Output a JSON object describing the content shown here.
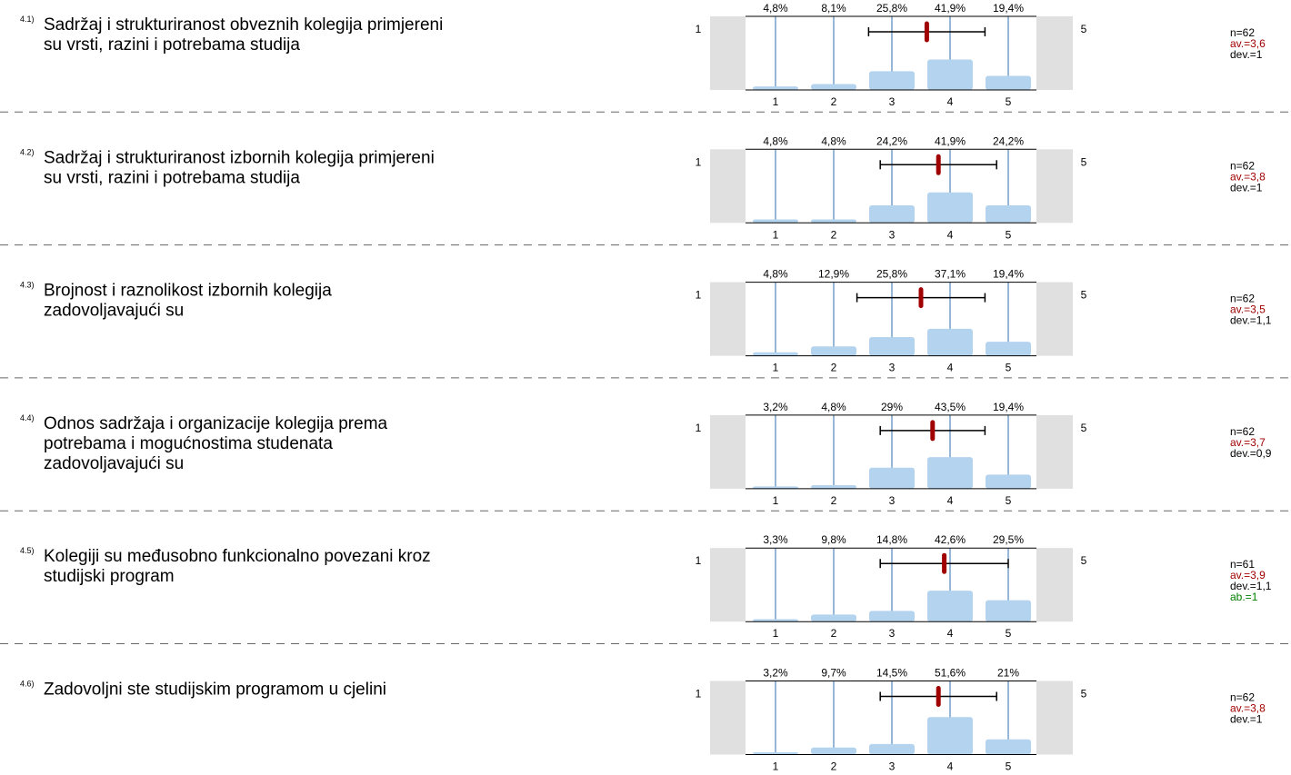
{
  "categories": [
    1,
    2,
    3,
    4,
    5
  ],
  "scale": [
    1,
    5
  ],
  "items": [
    {
      "number": "4.1)",
      "question": [
        "Sadržaj i strukturiranost obveznih kolegija primjereni",
        "su vrsti, razini i potrebama studija"
      ],
      "values": [
        4.8,
        8.1,
        25.8,
        41.9,
        19.4
      ],
      "value_labels": [
        "4,8%",
        "8,1%",
        "25,8%",
        "41,9%",
        "19,4%"
      ],
      "n": 62,
      "n_label": "n=62",
      "mean": 3.6,
      "mean_label": "av.=3,6",
      "dev": 1,
      "dev_label": "dev.=1"
    },
    {
      "number": "4.2)",
      "question": [
        "Sadržaj i strukturiranost izbornih kolegija primjereni",
        "su vrsti, razini i potrebama studija"
      ],
      "values": [
        4.8,
        4.8,
        24.2,
        41.9,
        24.2
      ],
      "value_labels": [
        "4,8%",
        "4,8%",
        "24,2%",
        "41,9%",
        "24,2%"
      ],
      "n": 62,
      "n_label": "n=62",
      "mean": 3.8,
      "mean_label": "av.=3,8",
      "dev": 1,
      "dev_label": "dev.=1"
    },
    {
      "number": "4.3)",
      "question": [
        "Brojnost i raznolikost izbornih kolegija",
        "zadovoljavajući su"
      ],
      "values": [
        4.8,
        12.9,
        25.8,
        37.1,
        19.4
      ],
      "value_labels": [
        "4,8%",
        "12,9%",
        "25,8%",
        "37,1%",
        "19,4%"
      ],
      "n": 62,
      "n_label": "n=62",
      "mean": 3.5,
      "mean_label": "av.=3,5",
      "dev": 1.1,
      "dev_label": "dev.=1,1"
    },
    {
      "number": "4.4)",
      "question": [
        "Odnos sadržaja i organizacije kolegija prema",
        "potrebama i mogućnostima studenata",
        "zadovoljavajući su"
      ],
      "values": [
        3.2,
        4.8,
        29,
        43.5,
        19.4
      ],
      "value_labels": [
        "3,2%",
        "4,8%",
        "29%",
        "43,5%",
        "19,4%"
      ],
      "n": 62,
      "n_label": "n=62",
      "mean": 3.7,
      "mean_label": "av.=3,7",
      "dev": 0.9,
      "dev_label": "dev.=0,9"
    },
    {
      "number": "4.5)",
      "question": [
        "Kolegiji su međusobno funkcionalno povezani kroz",
        "studijski program"
      ],
      "values": [
        3.3,
        9.8,
        14.8,
        42.6,
        29.5
      ],
      "value_labels": [
        "3,3%",
        "9,8%",
        "14,8%",
        "42,6%",
        "29,5%"
      ],
      "n": 61,
      "n_label": "n=61",
      "mean": 3.9,
      "mean_label": "av.=3,9",
      "dev": 1.1,
      "dev_label": "dev.=1,1",
      "ab": 1,
      "ab_label": "ab.=1"
    },
    {
      "number": "4.6)",
      "question": [
        "Zadovoljni ste studijskim programom u cjelini"
      ],
      "values": [
        3.2,
        9.7,
        14.5,
        51.6,
        21
      ],
      "value_labels": [
        "3,2%",
        "9,7%",
        "14,5%",
        "51,6%",
        "21%"
      ],
      "n": 62,
      "n_label": "n=62",
      "mean": 3.8,
      "mean_label": "av.=3,8",
      "dev": 1,
      "dev_label": "dev.=1"
    }
  ]
}
